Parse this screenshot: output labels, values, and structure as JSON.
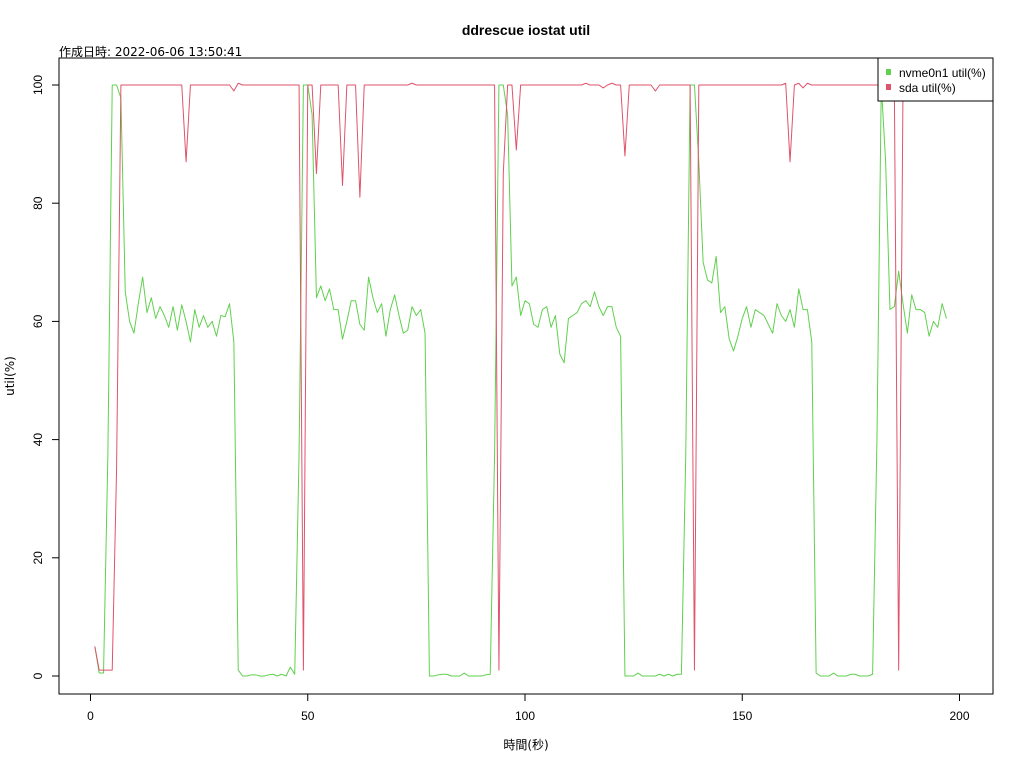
{
  "chart_data": {
    "type": "line",
    "title": "ddrescue iostat util",
    "subtitle": "作成日時: 2022-06-06 13:50:41",
    "xlabel": "時間(秒)",
    "ylabel": "util(%)",
    "xlim": [
      1,
      200
    ],
    "ylim": [
      0,
      100
    ],
    "xticks": [
      0,
      50,
      100,
      150,
      200
    ],
    "yticks": [
      0,
      20,
      40,
      60,
      80,
      100
    ],
    "grid": false,
    "legend_position": "top-right",
    "colors": {
      "nvme": "#61d04f",
      "sda": "#df536b"
    },
    "series": [
      {
        "name": "nvme0n1 util(%)",
        "color": "#61d04f",
        "values": [
          5.0,
          0.5,
          0.5,
          37.5,
          100.0,
          100.0,
          97.8,
          65.0,
          60.0,
          58.0,
          63.0,
          67.5,
          61.5,
          64.0,
          60.5,
          62.5,
          61.0,
          59.0,
          62.5,
          58.5,
          62.8,
          60.0,
          56.5,
          62.0,
          59.0,
          61.0,
          59.0,
          60.0,
          57.5,
          61.0,
          60.8,
          63.0,
          56.5,
          1.0,
          0.0,
          0.0,
          0.2,
          0.2,
          0.0,
          0.0,
          0.2,
          0.3,
          0.0,
          0.3,
          0.0,
          1.5,
          0.3,
          37.5,
          100.0,
          100.0,
          95.0,
          64.0,
          66.0,
          63.5,
          65.5,
          62.0,
          62.0,
          57.0,
          60.0,
          63.5,
          63.5,
          59.5,
          58.5,
          67.5,
          64.0,
          61.5,
          63.0,
          57.5,
          62.0,
          64.5,
          61.0,
          58.0,
          58.5,
          62.5,
          61.0,
          62.0,
          58.0,
          0.0,
          0.0,
          0.2,
          0.3,
          0.3,
          0.0,
          0.0,
          0.0,
          0.5,
          0.0,
          0.0,
          0.0,
          0.0,
          0.2,
          0.3,
          37.5,
          100.0,
          100.0,
          95.0,
          66.0,
          67.5,
          61.0,
          63.5,
          63.0,
          59.5,
          59.0,
          62.0,
          62.5,
          59.0,
          61.0,
          54.5,
          53.0,
          60.5,
          61.0,
          61.5,
          63.0,
          63.5,
          62.5,
          65.0,
          62.5,
          61.0,
          62.5,
          62.5,
          59.0,
          57.5,
          0.0,
          0.0,
          0.0,
          0.5,
          0.0,
          0.0,
          0.0,
          0.0,
          0.3,
          0.0,
          0.3,
          0.0,
          0.3,
          0.3,
          37.5,
          100.0,
          100.0,
          87.0,
          70.0,
          67.0,
          66.5,
          71.0,
          61.5,
          62.5,
          57.0,
          55.0,
          57.5,
          60.5,
          62.5,
          59.0,
          62.0,
          61.5,
          61.0,
          59.5,
          58.0,
          63.0,
          61.0,
          60.0,
          62.0,
          59.0,
          65.5,
          62.0,
          62.0,
          56.5,
          0.5,
          0.0,
          0.0,
          0.0,
          0.5,
          0.0,
          0.0,
          0.0,
          0.3,
          0.3,
          0.0,
          0.0,
          0.0,
          0.3,
          40.0,
          100.0,
          87.0,
          62.0,
          62.5,
          68.5,
          63.0,
          58.0,
          64.5,
          62.0,
          62.0,
          61.5,
          57.5,
          60.0,
          59.0,
          63.0,
          60.5
        ]
      },
      {
        "name": "sda util(%)",
        "color": "#df536b",
        "values": [
          5.0,
          1.0,
          1.0,
          1.0,
          1.0,
          35.0,
          100.0,
          100.0,
          100.0,
          100.0,
          100.0,
          100.0,
          100.0,
          100.0,
          100.0,
          100.0,
          100.0,
          100.0,
          100.0,
          100.0,
          100.0,
          87.0,
          100.0,
          100.0,
          100.0,
          100.0,
          100.0,
          100.0,
          100.0,
          100.0,
          100.0,
          100.0,
          99.0,
          100.3,
          100.0,
          100.0,
          100.0,
          100.0,
          100.0,
          100.0,
          100.0,
          100.0,
          100.0,
          100.0,
          100.0,
          100.0,
          100.0,
          100.0,
          1.0,
          100.0,
          100.0,
          85.0,
          100.0,
          100.0,
          100.0,
          100.0,
          100.0,
          83.0,
          100.0,
          100.0,
          100.0,
          81.0,
          100.0,
          100.0,
          100.0,
          100.0,
          100.0,
          100.0,
          100.0,
          100.0,
          100.0,
          100.0,
          100.0,
          100.3,
          100.0,
          100.0,
          100.0,
          100.0,
          100.0,
          100.0,
          100.0,
          100.0,
          100.0,
          100.0,
          100.0,
          100.0,
          100.0,
          100.0,
          100.0,
          100.0,
          100.0,
          100.0,
          100.0,
          1.0,
          85.0,
          100.0,
          100.0,
          89.0,
          100.0,
          100.0,
          100.0,
          100.0,
          100.0,
          100.0,
          100.0,
          100.0,
          100.0,
          100.0,
          100.0,
          100.0,
          100.0,
          100.0,
          100.0,
          100.3,
          100.0,
          100.0,
          100.0,
          99.5,
          100.0,
          100.3,
          100.0,
          100.0,
          88.0,
          100.0,
          100.0,
          100.0,
          100.0,
          100.0,
          100.0,
          99.0,
          100.0,
          100.0,
          100.0,
          100.0,
          100.0,
          100.0,
          100.0,
          100.0,
          1.0,
          100.0,
          100.0,
          100.0,
          100.0,
          100.0,
          100.0,
          100.0,
          100.0,
          100.0,
          100.0,
          100.0,
          100.0,
          100.0,
          100.0,
          100.0,
          100.0,
          100.0,
          100.0,
          100.0,
          100.0,
          100.3,
          87.0,
          100.0,
          100.3,
          99.5,
          100.3,
          100.0,
          100.0,
          100.0,
          100.0,
          100.0,
          100.0,
          100.0,
          100.0,
          100.0,
          100.0,
          100.0,
          100.0,
          100.0,
          100.0,
          100.0,
          100.0,
          100.0,
          100.0,
          100.0,
          100.0,
          1.0,
          100.0,
          100.0
        ]
      }
    ]
  }
}
